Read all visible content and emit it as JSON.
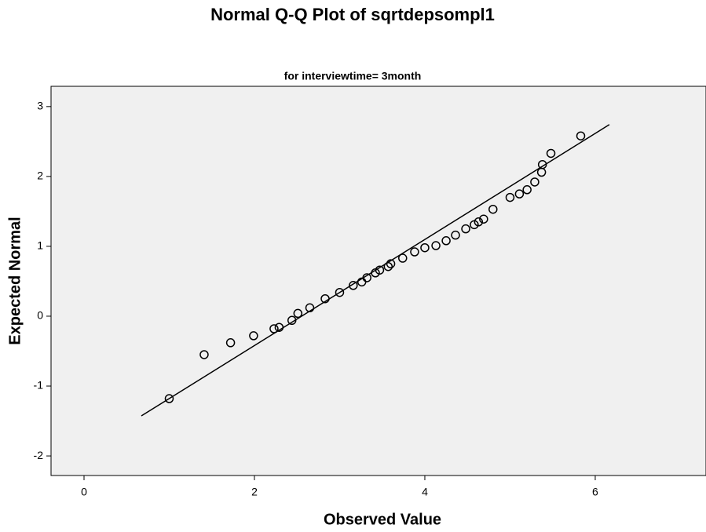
{
  "chart_data": {
    "type": "scatter",
    "title": "Normal Q-Q Plot of sqrtdepsompl1",
    "subtitle": "for interviewtime= 3month",
    "x_label": "Observed Value",
    "y_label": "Expected Normal",
    "x": [
      1.0,
      1.41,
      1.72,
      1.99,
      2.23,
      2.29,
      2.44,
      2.51,
      2.65,
      2.83,
      3.0,
      3.16,
      3.26,
      3.32,
      3.42,
      3.47,
      3.57,
      3.6,
      3.74,
      3.88,
      4.0,
      4.13,
      4.25,
      4.36,
      4.48,
      4.58,
      4.63,
      4.69,
      4.8,
      5.0,
      5.11,
      5.2,
      5.29,
      5.37,
      5.38,
      5.48,
      5.83
    ],
    "values": [
      -1.18,
      -0.55,
      -0.38,
      -0.28,
      -0.18,
      -0.16,
      -0.06,
      0.04,
      0.12,
      0.25,
      0.34,
      0.44,
      0.49,
      0.55,
      0.62,
      0.66,
      0.71,
      0.75,
      0.83,
      0.92,
      0.98,
      1.01,
      1.08,
      1.16,
      1.25,
      1.31,
      1.35,
      1.39,
      1.53,
      1.7,
      1.75,
      1.81,
      1.92,
      2.06,
      2.17,
      2.33,
      2.58
    ],
    "color": "#000000",
    "reference_line": {
      "x": [
        0.673,
        6.166
      ],
      "values": [
        -1.427,
        2.742
      ]
    },
    "background": "#f0f0f0",
    "xlim": [
      -0.387,
      7.3
    ],
    "ylim": [
      -2.28,
      3.29
    ],
    "xticks": [
      0,
      2,
      4,
      6
    ],
    "yticks": [
      -2,
      -1,
      0,
      1,
      2,
      3
    ],
    "grid": false
  }
}
